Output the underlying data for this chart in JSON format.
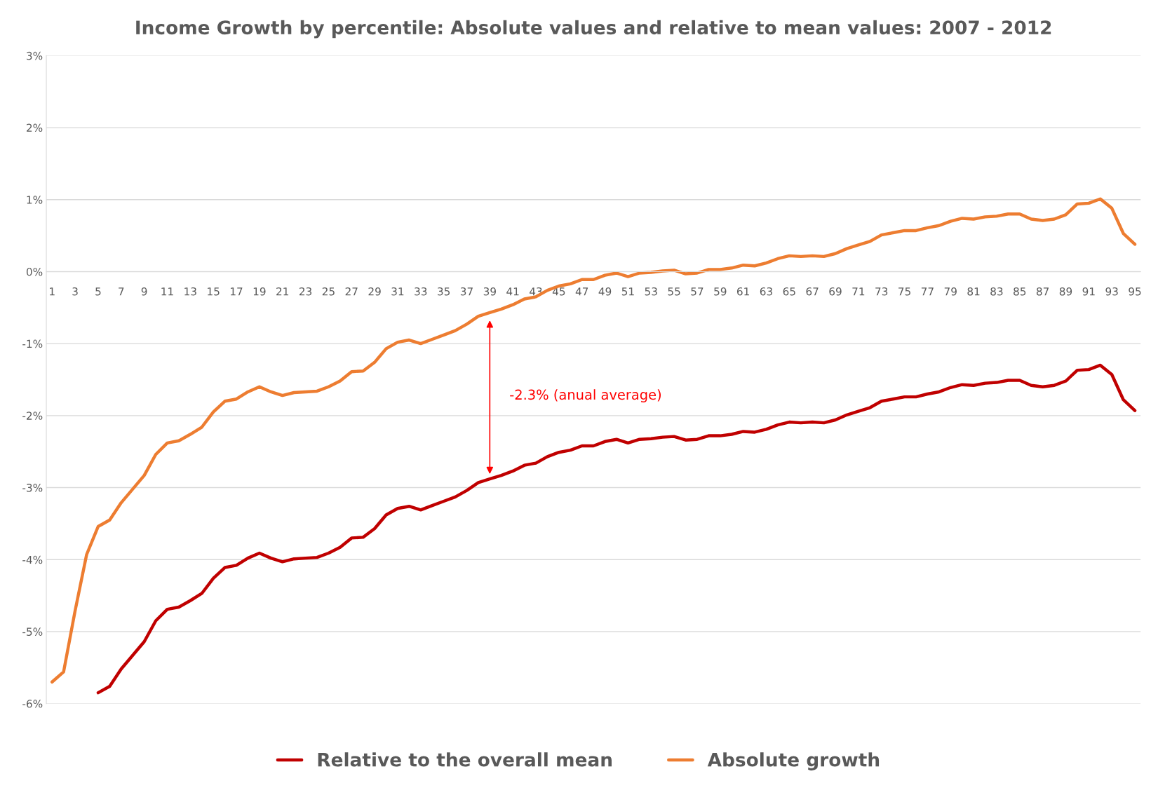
{
  "chart_data": {
    "type": "line",
    "title": "Income Growth by percentile: Absolute values and relative to mean values: 2007 - 2012",
    "categories": [
      "1",
      null,
      "3",
      null,
      "5",
      null,
      "7",
      null,
      "9",
      null,
      "11",
      null,
      "13",
      null,
      "15",
      null,
      "17",
      null,
      "19",
      null,
      "21",
      null,
      "23",
      null,
      "25",
      null,
      "27",
      null,
      "29",
      null,
      "31",
      null,
      "33",
      null,
      "35",
      null,
      "37",
      null,
      "39",
      null,
      "41",
      null,
      "43",
      null,
      "45",
      null,
      "47",
      null,
      "49",
      null,
      "51",
      null,
      "53",
      null,
      "55",
      null,
      "57",
      null,
      "59",
      null,
      "61",
      null,
      "63",
      null,
      "65",
      null,
      "67",
      null,
      "69",
      null,
      "71",
      null,
      "73",
      null,
      "75",
      null,
      "77",
      null,
      "79",
      null,
      "81",
      null,
      "83",
      null,
      "85",
      null,
      "87",
      null,
      "89",
      null,
      "91",
      null,
      "93",
      null,
      "95"
    ],
    "series": [
      {
        "name": "Relative to the overall mean",
        "color": "#c00000",
        "values": [
          null,
          null,
          null,
          null,
          -5.85,
          -5.76,
          -5.52,
          -5.33,
          -5.14,
          -4.85,
          -4.69,
          -4.66,
          -4.57,
          -4.47,
          -4.26,
          -4.11,
          -4.08,
          -3.98,
          -3.91,
          -3.98,
          -4.03,
          -3.99,
          -3.98,
          -3.97,
          -3.91,
          -3.83,
          -3.7,
          -3.69,
          -3.57,
          -3.38,
          -3.29,
          -3.26,
          -3.31,
          -3.25,
          -3.19,
          -3.13,
          -3.04,
          -2.93,
          -2.88,
          -2.83,
          -2.77,
          -2.69,
          -2.66,
          -2.57,
          -2.51,
          -2.48,
          -2.42,
          -2.42,
          -2.36,
          -2.33,
          -2.38,
          -2.33,
          -2.32,
          -2.3,
          -2.29,
          -2.34,
          -2.33,
          -2.28,
          -2.28,
          -2.26,
          -2.22,
          -2.23,
          -2.19,
          -2.13,
          -2.09,
          -2.1,
          -2.09,
          -2.1,
          -2.06,
          -1.99,
          -1.94,
          -1.89,
          -1.8,
          -1.77,
          -1.74,
          -1.74,
          -1.7,
          -1.67,
          -1.61,
          -1.57,
          -1.58,
          -1.55,
          -1.54,
          -1.51,
          -1.51,
          -1.58,
          -1.6,
          -1.58,
          -1.52,
          -1.37,
          -1.36,
          -1.3,
          -1.43,
          -1.78,
          -1.93
        ]
      },
      {
        "name": "Absolute growth",
        "color": "#ed7d31",
        "values": [
          -5.7,
          -5.56,
          -4.71,
          -3.93,
          -3.54,
          -3.45,
          -3.21,
          -3.02,
          -2.83,
          -2.54,
          -2.38,
          -2.35,
          -2.26,
          -2.16,
          -1.95,
          -1.8,
          -1.77,
          -1.67,
          -1.6,
          -1.67,
          -1.72,
          -1.68,
          -1.67,
          -1.66,
          -1.6,
          -1.52,
          -1.39,
          -1.38,
          -1.26,
          -1.07,
          -0.98,
          -0.95,
          -1.0,
          -0.94,
          -0.88,
          -0.82,
          -0.73,
          -0.62,
          -0.57,
          -0.52,
          -0.46,
          -0.38,
          -0.35,
          -0.26,
          -0.2,
          -0.17,
          -0.11,
          -0.11,
          -0.05,
          -0.02,
          -0.07,
          -0.02,
          -0.01,
          0.01,
          0.02,
          -0.03,
          -0.02,
          0.03,
          0.03,
          0.05,
          0.09,
          0.08,
          0.12,
          0.18,
          0.22,
          0.21,
          0.22,
          0.21,
          0.25,
          0.32,
          0.37,
          0.42,
          0.51,
          0.54,
          0.57,
          0.57,
          0.61,
          0.64,
          0.7,
          0.74,
          0.73,
          0.76,
          0.77,
          0.8,
          0.8,
          0.73,
          0.71,
          0.73,
          0.79,
          0.94,
          0.95,
          1.01,
          0.88,
          0.53,
          0.38
        ]
      }
    ],
    "ylim": [
      -6,
      3
    ],
    "yticks": [
      {
        "value": -6,
        "label": "-6%"
      },
      {
        "value": -5,
        "label": "-5%"
      },
      {
        "value": -4,
        "label": "-4%"
      },
      {
        "value": -3,
        "label": "-3%"
      },
      {
        "value": -2,
        "label": "-2%"
      },
      {
        "value": -1,
        "label": "-1%"
      },
      {
        "value": 0,
        "label": "0%"
      },
      {
        "value": 1,
        "label": "1%"
      },
      {
        "value": 2,
        "label": "2%"
      },
      {
        "value": 3,
        "label": "3%"
      }
    ],
    "annotations": [
      "-2.3% (anual average)"
    ],
    "grid": "y",
    "legend": "bottom"
  }
}
